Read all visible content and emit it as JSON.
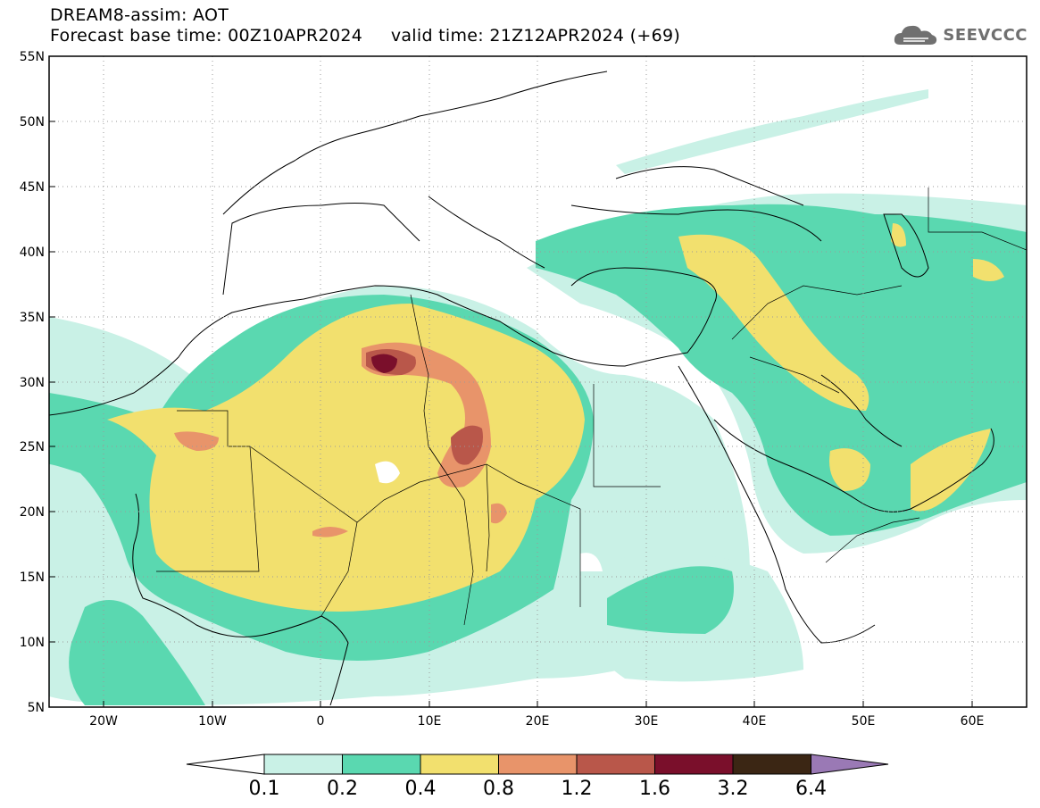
{
  "header": {
    "title_line1": "DREAM8-assim: AOT",
    "title_line2": "Forecast base time: 00Z10APR2024     valid time: 21Z12APR2024 (+69)"
  },
  "logo": {
    "text": "SEEVCCC",
    "icon": "cloud-icon"
  },
  "axes": {
    "lat_labels": [
      "55N",
      "50N",
      "45N",
      "40N",
      "35N",
      "30N",
      "25N",
      "20N",
      "15N",
      "10N",
      "5N"
    ],
    "lon_labels": [
      "20W",
      "10W",
      "0",
      "10E",
      "20E",
      "30E",
      "40E",
      "50E",
      "60E"
    ]
  },
  "colorbar": {
    "labels": [
      "0.1",
      "0.2",
      "0.4",
      "0.8",
      "1.2",
      "1.6",
      "3.2",
      "6.4"
    ],
    "colors": [
      "#ffffff",
      "#c9f1e6",
      "#5ad8b0",
      "#f2e06e",
      "#e8946a",
      "#b9574a",
      "#7a0f2b",
      "#3b2614",
      "#9a79b5"
    ]
  },
  "map": {
    "lon_range": [
      -25,
      65
    ],
    "lat_range": [
      5,
      55
    ],
    "grid": "dotted",
    "field": "AOT"
  }
}
